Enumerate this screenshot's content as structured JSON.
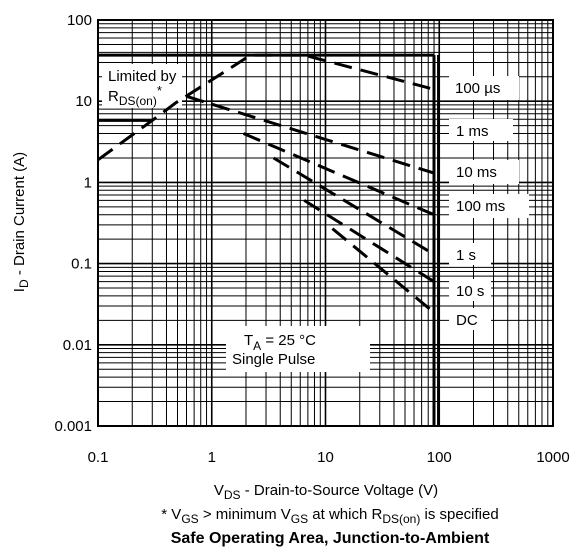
{
  "chart_data": {
    "type": "line",
    "title": "Safe Operating Area, Junction-to-Ambient",
    "footnote": {
      "prefix": "* V",
      "sub1": "GS",
      "mid": " > minimum V",
      "sub2": "GS",
      "mid2": " at which R",
      "sub3": "DS(on)",
      "suffix": " is specified"
    },
    "xlabel": {
      "main": "V",
      "sub": "DS",
      "rest": " - Drain-to-Source Voltage (V)"
    },
    "ylabel": {
      "main": "I",
      "sub": "D",
      "rest": " - Drain Current (A)"
    },
    "xscale": "log",
    "yscale": "log",
    "xlim": [
      0.1,
      1000
    ],
    "ylim": [
      0.001,
      100
    ],
    "grid": true,
    "x_ticks": [
      "0.1",
      "1",
      "10",
      "100",
      "1000"
    ],
    "y_ticks": [
      "0.001",
      "0.01",
      "0.1",
      "1",
      "10",
      "100"
    ],
    "annotations": {
      "limited_line1": "Limited  by",
      "limited_rds_main": "R",
      "limited_rds_sub": "DS(on)",
      "limited_rds_star": "*",
      "ta_main": "T",
      "ta_sub": "A",
      "ta_rest": " = 25 °C",
      "single_pulse": "Single Pulse"
    },
    "series": [
      {
        "name": "100 µs",
        "style": "dashed",
        "points": [
          [
            0.1,
            1.9
          ],
          [
            0.3,
            5.8
          ],
          [
            0.48,
            9.5
          ],
          [
            2.2,
            37
          ],
          [
            6.5,
            37
          ],
          [
            90,
            14
          ]
        ]
      },
      {
        "name": "1 ms",
        "style": "dashed",
        "points": [
          [
            0.6,
            11.5
          ],
          [
            90,
            1.3
          ]
        ]
      },
      {
        "name": "10 ms",
        "style": "dashed",
        "points": [
          [
            1.9,
            4.0
          ],
          [
            90,
            0.4
          ]
        ]
      },
      {
        "name": "100 ms",
        "style": "dashed",
        "points": [
          [
            3.5,
            2.0
          ],
          [
            90,
            0.13
          ]
        ]
      },
      {
        "name": "1 s",
        "style": "dashed",
        "points": [
          [
            6.5,
            0.6
          ],
          [
            90,
            0.06
          ]
        ]
      },
      {
        "name": "10 s",
        "style": "dashed",
        "points": [
          [
            11.5,
            0.27
          ],
          [
            90,
            0.025
          ]
        ]
      },
      {
        "name": "DC",
        "style": "solid",
        "points": [
          [
            0.1,
            5.8
          ],
          [
            0.3,
            5.8
          ],
          [
            0.48,
            9.5
          ],
          [
            2.2,
            37
          ],
          [
            90,
            37
          ],
          [
            90,
            0.001
          ]
        ]
      }
    ],
    "solid_boundaries": [
      [
        [
          0.1,
          5.8
        ],
        [
          0.3,
          5.8
        ]
      ],
      [
        [
          0.1,
          37
        ],
        [
          90,
          37
        ]
      ],
      [
        [
          90,
          37
        ],
        [
          90,
          0.001
        ]
      ]
    ]
  }
}
